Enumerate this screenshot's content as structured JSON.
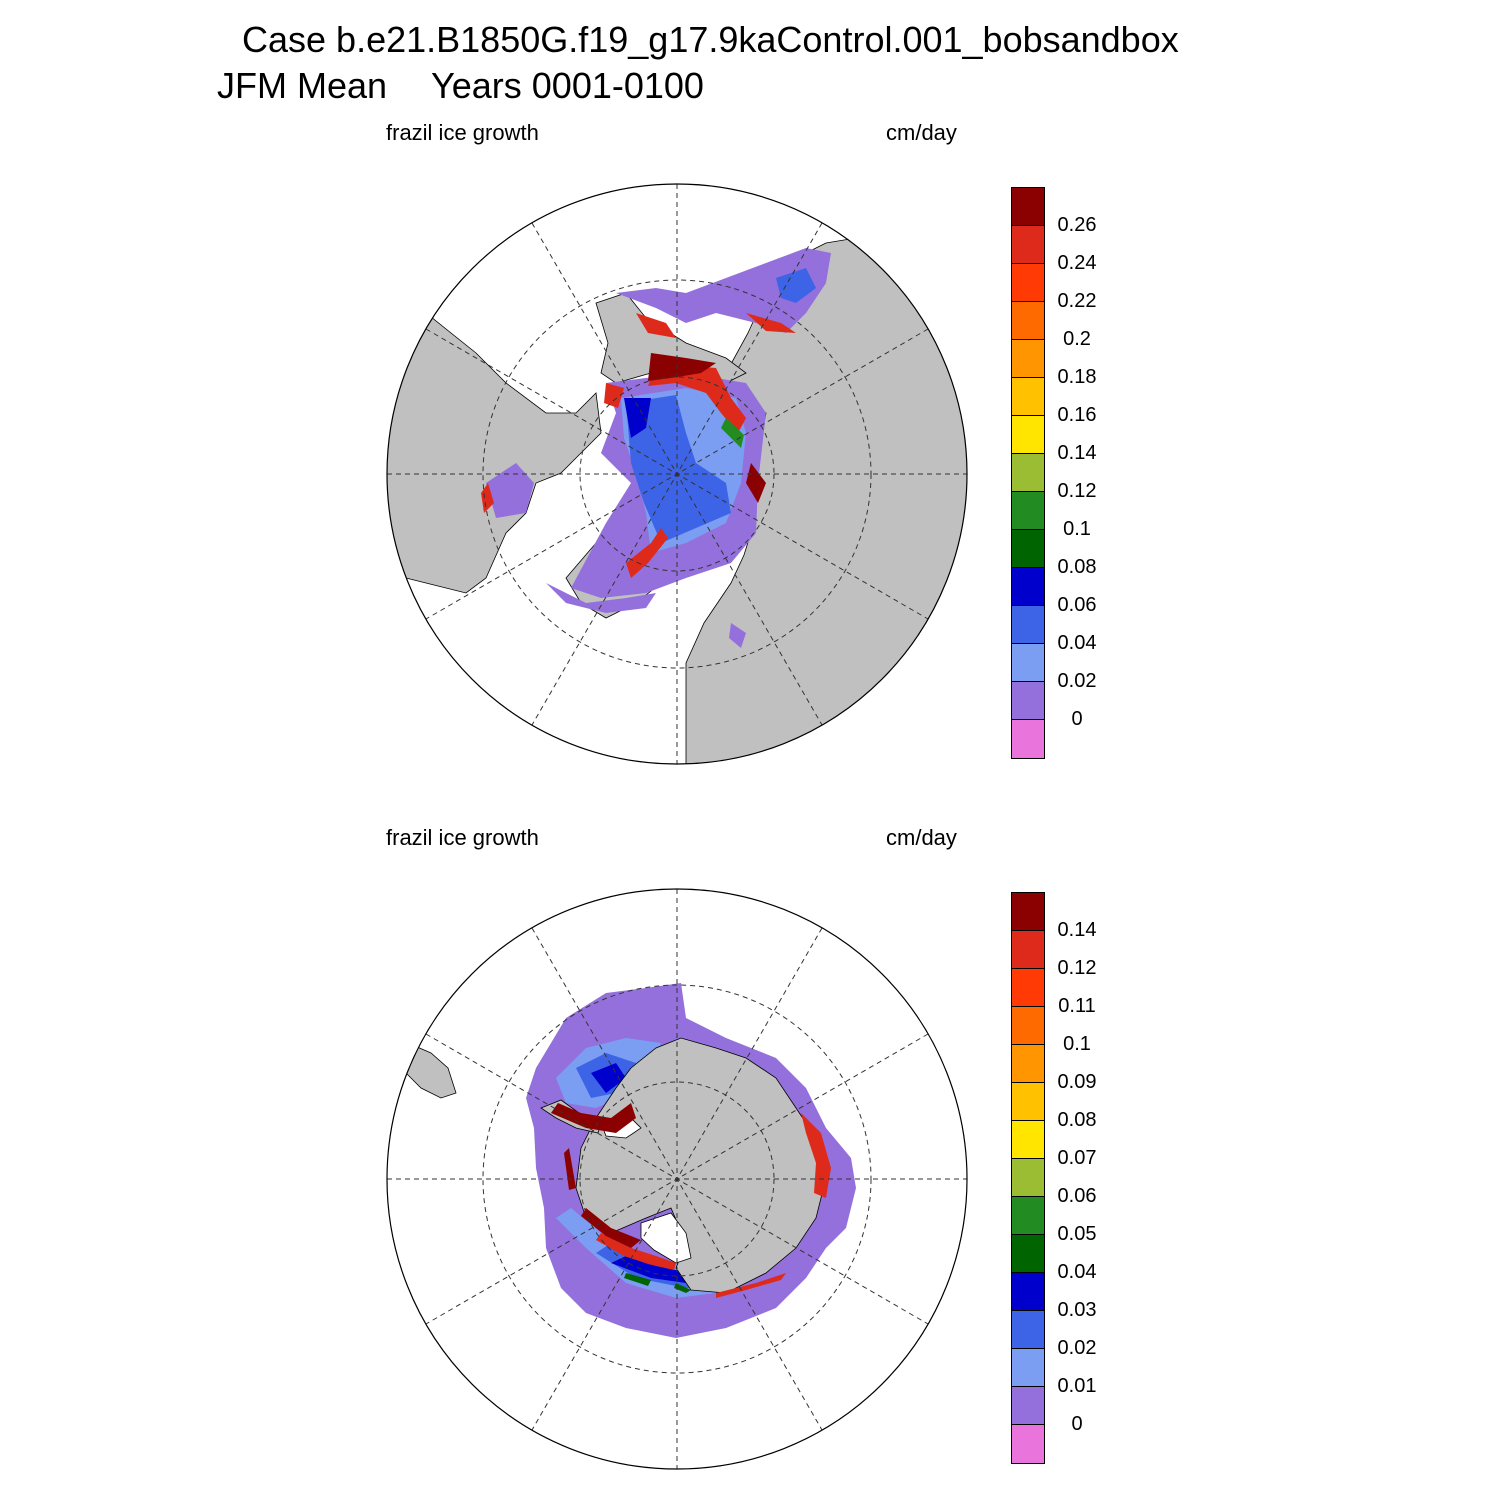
{
  "title": {
    "case_line": "Case b.e21.B1850G.f19_g17.9kaControl.001_bobsandbox",
    "period": "JFM Mean",
    "years": "Years 0001-0100"
  },
  "panels": [
    {
      "hemisphere": "north",
      "variable_label": "frazil ice growth",
      "units_label": "cm/day",
      "colorbar": {
        "colors": [
          "#8b0000",
          "#de2a1a",
          "#ff3a05",
          "#ff6a00",
          "#ff9500",
          "#ffc100",
          "#ffe500",
          "#9bbd33",
          "#228b22",
          "#006400",
          "#0000cd",
          "#3d64e6",
          "#7b9ef2",
          "#9370db",
          "#e874dc"
        ],
        "labels": [
          "0.26",
          "0.24",
          "0.22",
          "0.2",
          "0.18",
          "0.16",
          "0.14",
          "0.12",
          "0.1",
          "0.08",
          "0.06",
          "0.04",
          "0.02",
          "0"
        ]
      }
    },
    {
      "hemisphere": "south",
      "variable_label": "frazil ice growth",
      "units_label": "cm/day",
      "colorbar": {
        "colors": [
          "#8b0000",
          "#de2a1a",
          "#ff3a05",
          "#ff6a00",
          "#ff9500",
          "#ffc100",
          "#ffe500",
          "#9bbd33",
          "#228b22",
          "#006400",
          "#0000cd",
          "#3d64e6",
          "#7b9ef2",
          "#9370db",
          "#e874dc"
        ],
        "labels": [
          "0.14",
          "0.12",
          "0.11",
          "0.1",
          "0.09",
          "0.08",
          "0.07",
          "0.06",
          "0.05",
          "0.04",
          "0.03",
          "0.02",
          "0.01",
          "0"
        ]
      }
    }
  ],
  "map_colors": {
    "land": "#c0c0c0",
    "ocean": "#ffffff",
    "grid": "#333333"
  }
}
